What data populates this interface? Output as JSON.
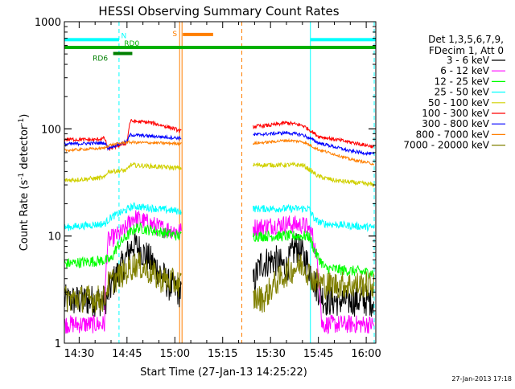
{
  "chart_data": {
    "type": "line",
    "title": "HESSI Observing Summary Count Rates",
    "xlabel": "Start Time (27-Jan-13 14:25:22)",
    "ylabel": "Count Rate (s",
    "ylabel_exp1": "-1",
    "ylabel_mid": " detector",
    "ylabel_exp2": "-1",
    "ylabel_end": ")",
    "ylim": [
      1,
      1000
    ],
    "yscale": "log",
    "x_range_minutes": [
      "14:25:22",
      "16:03:00"
    ],
    "x_ticks": [
      "14:30",
      "14:45",
      "15:00",
      "15:15",
      "15:30",
      "15:45",
      "16:00"
    ],
    "y_ticks": [
      "1",
      "10",
      "100",
      "1000"
    ],
    "legend_header": [
      "Det 1,3,5,6,7,9,",
      "FDecim 1, Att 0"
    ],
    "legend_placement": "right",
    "timestamp": "27-Jan-2013 17:18",
    "flags": [
      {
        "label": "N",
        "color": "#00ffff",
        "level": 680,
        "segments": [
          [
            "14:25:22",
            "14:42:30"
          ],
          [
            "15:42:30",
            "16:03:00"
          ]
        ]
      },
      {
        "label": "S",
        "color": "#ff7f00",
        "level": 760,
        "segments": [
          [
            "15:02:30",
            "15:12:00"
          ]
        ]
      },
      {
        "label": "RD0",
        "color": "#00b000",
        "level": 575,
        "segments": [
          [
            "14:25:22",
            "16:03:00"
          ]
        ]
      },
      {
        "label": "RD6",
        "color": "#007f00",
        "level": 505,
        "segments": [
          [
            "14:40:40",
            "14:46:40"
          ]
        ]
      }
    ],
    "vlines": [
      {
        "time": "14:25:22",
        "color": "#00ffff",
        "style": "solid"
      },
      {
        "time": "14:42:30",
        "color": "#00ffff",
        "style": "dashed"
      },
      {
        "time": "15:01:30",
        "color": "#ff7f00",
        "style": "solid"
      },
      {
        "time": "15:02:15",
        "color": "#ff7f00",
        "style": "solid"
      },
      {
        "time": "15:21:00",
        "color": "#ff7f00",
        "style": "dashed"
      },
      {
        "time": "15:42:30",
        "color": "#00ffff",
        "style": "solid"
      },
      {
        "time": "16:02:30",
        "color": "#00ffff",
        "style": "dashed"
      }
    ],
    "data_gap": [
      "15:02:00",
      "15:24:30"
    ],
    "series": [
      {
        "name": "3 - 6 keV",
        "color": "#000000",
        "noise": 0.35,
        "points": [
          [
            "14:25:22",
            2.5
          ],
          [
            "14:38:00",
            2.5
          ],
          [
            "14:39:00",
            2.8
          ],
          [
            "14:44:00",
            5.5
          ],
          [
            "14:47:00",
            8.5
          ],
          [
            "14:52:00",
            6.0
          ],
          [
            "14:58:00",
            3.5
          ],
          [
            "15:01:30",
            3.0
          ],
          [
            "15:24:30",
            3.5
          ],
          [
            "15:27:00",
            5.5
          ],
          [
            "15:31:00",
            6.0
          ],
          [
            "15:35:00",
            5.0
          ],
          [
            "15:38:00",
            8.0
          ],
          [
            "15:41:00",
            6.0
          ],
          [
            "15:44:00",
            3.5
          ],
          [
            "15:47:00",
            2.5
          ],
          [
            "16:02:30",
            2.5
          ]
        ]
      },
      {
        "name": "6 - 12 keV",
        "color": "#ff00ff",
        "noise": 0.2,
        "points": [
          [
            "14:25:22",
            1.5
          ],
          [
            "14:38:00",
            1.5
          ],
          [
            "14:39:00",
            9.0
          ],
          [
            "14:44:00",
            11.0
          ],
          [
            "14:47:00",
            15.0
          ],
          [
            "14:55:00",
            12.0
          ],
          [
            "15:01:30",
            11.0
          ],
          [
            "15:24:30",
            12.0
          ],
          [
            "15:35:00",
            13.0
          ],
          [
            "15:41:00",
            12.5
          ],
          [
            "15:43:00",
            10.5
          ],
          [
            "15:46:00",
            1.5
          ],
          [
            "16:02:30",
            1.5
          ]
        ]
      },
      {
        "name": "12 - 25 keV",
        "color": "#00ff00",
        "noise": 0.12,
        "points": [
          [
            "14:25:22",
            5.5
          ],
          [
            "14:40:00",
            6.0
          ],
          [
            "14:42:00",
            8.0
          ],
          [
            "14:45:00",
            10.0
          ],
          [
            "14:48:00",
            12.0
          ],
          [
            "15:01:30",
            10.0
          ],
          [
            "15:24:30",
            10.0
          ],
          [
            "15:42:00",
            10.0
          ],
          [
            "15:44:00",
            7.0
          ],
          [
            "15:47:00",
            5.0
          ],
          [
            "16:02:30",
            4.5
          ]
        ]
      },
      {
        "name": "25 - 50 keV",
        "color": "#00ffff",
        "noise": 0.08,
        "points": [
          [
            "14:25:22",
            12.0
          ],
          [
            "14:38:00",
            13.0
          ],
          [
            "14:40:00",
            15.0
          ],
          [
            "14:44:00",
            17.0
          ],
          [
            "14:47:00",
            19.0
          ],
          [
            "15:01:30",
            17.0
          ],
          [
            "15:24:30",
            18.0
          ],
          [
            "15:42:00",
            18.0
          ],
          [
            "15:44:00",
            14.0
          ],
          [
            "15:47:00",
            13.0
          ],
          [
            "16:02:30",
            12.0
          ]
        ]
      },
      {
        "name": "50 - 100 keV",
        "color": "#d0d000",
        "noise": 0.05,
        "points": [
          [
            "14:25:22",
            33.0
          ],
          [
            "14:38:00",
            35.0
          ],
          [
            "14:39:00",
            40.0
          ],
          [
            "14:45:00",
            41.0
          ],
          [
            "14:46:00",
            46.0
          ],
          [
            "15:01:30",
            43.0
          ],
          [
            "15:24:30",
            46.0
          ],
          [
            "15:35:00",
            46.0
          ],
          [
            "15:40:00",
            46.0
          ],
          [
            "15:45:00",
            36.0
          ],
          [
            "15:50:00",
            33.0
          ],
          [
            "16:02:30",
            30.0
          ]
        ]
      },
      {
        "name": "100 - 300 keV",
        "color": "#ff0000",
        "noise": 0.04,
        "points": [
          [
            "14:25:22",
            80.0
          ],
          [
            "14:35:00",
            79.0
          ],
          [
            "14:38:00",
            82.0
          ],
          [
            "14:39:00",
            64.0
          ],
          [
            "14:45:00",
            74.0
          ],
          [
            "14:46:00",
            118.0
          ],
          [
            "14:52:00",
            115.0
          ],
          [
            "15:00:00",
            100.0
          ],
          [
            "15:01:30",
            95.0
          ],
          [
            "15:24:30",
            105.0
          ],
          [
            "15:30:00",
            108.0
          ],
          [
            "15:35:00",
            114.0
          ],
          [
            "15:40:00",
            108.0
          ],
          [
            "15:45:00",
            85.0
          ],
          [
            "15:55:00",
            75.0
          ],
          [
            "16:02:30",
            68.0
          ]
        ]
      },
      {
        "name": "300 - 800 keV",
        "color": "#0000ff",
        "noise": 0.035,
        "points": [
          [
            "14:25:22",
            72.0
          ],
          [
            "14:38:00",
            74.0
          ],
          [
            "14:39:00",
            66.0
          ],
          [
            "14:45:00",
            76.0
          ],
          [
            "14:46:00",
            88.0
          ],
          [
            "15:01:30",
            82.0
          ],
          [
            "15:24:30",
            88.0
          ],
          [
            "15:35:00",
            92.0
          ],
          [
            "15:40:00",
            88.0
          ],
          [
            "15:45:00",
            74.0
          ],
          [
            "15:55:00",
            62.0
          ],
          [
            "16:02:30",
            58.0
          ]
        ]
      },
      {
        "name": "800 - 7000 keV",
        "color": "#ff7f00",
        "noise": 0.03,
        "points": [
          [
            "14:25:22",
            63.0
          ],
          [
            "14:38:00",
            66.0
          ],
          [
            "14:39:00",
            70.0
          ],
          [
            "14:45:00",
            75.0
          ],
          [
            "15:01:30",
            73.0
          ],
          [
            "15:24:30",
            73.0
          ],
          [
            "15:35:00",
            78.0
          ],
          [
            "15:40:00",
            76.0
          ],
          [
            "15:45:00",
            64.0
          ],
          [
            "15:55:00",
            52.0
          ],
          [
            "16:02:30",
            47.0
          ]
        ]
      },
      {
        "name": "7000 - 20000 keV",
        "color": "#808000",
        "noise": 0.3,
        "points": [
          [
            "14:25:22",
            2.6
          ],
          [
            "14:38:00",
            2.6
          ],
          [
            "14:39:00",
            3.5
          ],
          [
            "14:44:00",
            4.5
          ],
          [
            "14:48:00",
            5.5
          ],
          [
            "14:55:00",
            4.0
          ],
          [
            "15:01:30",
            3.6
          ],
          [
            "15:24:30",
            2.6
          ],
          [
            "15:28:00",
            2.6
          ],
          [
            "15:31:00",
            3.5
          ],
          [
            "15:35:00",
            4.5
          ],
          [
            "15:40:00",
            5.5
          ],
          [
            "15:43:00",
            4.0
          ],
          [
            "15:47:00",
            3.5
          ],
          [
            "16:02:30",
            3.5
          ]
        ]
      }
    ]
  }
}
